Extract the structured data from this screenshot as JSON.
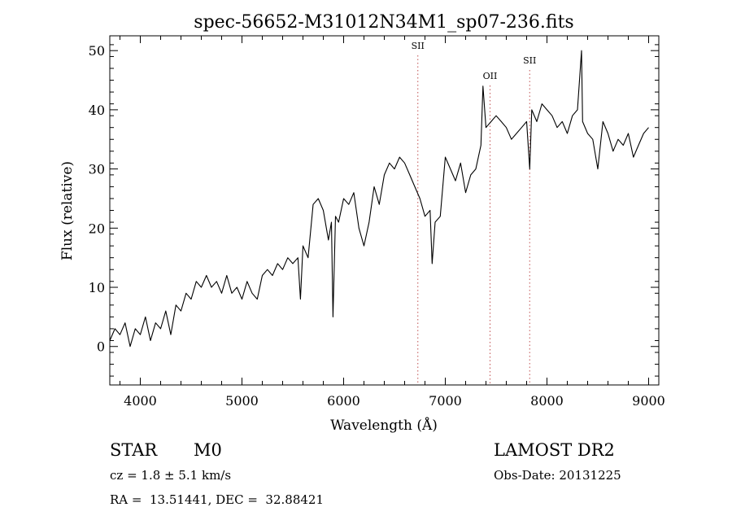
{
  "chart_data": {
    "type": "line",
    "title": "spec-56652-M31012N34M1_sp07-236.fits",
    "xlabel": "Wavelength (Å)",
    "ylabel": "Flux (relative)",
    "xlim": [
      3700,
      9100
    ],
    "ylim": [
      -6.5,
      52.5
    ],
    "x_ticks": [
      4000,
      5000,
      6000,
      7000,
      8000,
      9000
    ],
    "y_ticks": [
      0,
      10,
      20,
      30,
      40,
      50
    ],
    "grid": false,
    "line_color": "#000000",
    "series": [
      {
        "x": [
          3700,
          3750,
          3800,
          3850,
          3900,
          3950,
          4000,
          4050,
          4100,
          4150,
          4200,
          4250,
          4300,
          4350,
          4400,
          4450,
          4500,
          4550,
          4600,
          4650,
          4700,
          4750,
          4800,
          4850,
          4900,
          4950,
          5000,
          5050,
          5100,
          5150,
          5200,
          5250,
          5300,
          5350,
          5400,
          5450,
          5500,
          5550,
          5575,
          5600,
          5650,
          5700,
          5750,
          5800,
          5850,
          5880,
          5895,
          5920,
          5950,
          6000,
          6050,
          6100,
          6150,
          6200,
          6250,
          6300,
          6350,
          6400,
          6450,
          6500,
          6550,
          6600,
          6650,
          6700,
          6750,
          6800,
          6850,
          6870,
          6900,
          6950,
          7000,
          7050,
          7100,
          7150,
          7200,
          7250,
          7300,
          7350,
          7370,
          7400,
          7450,
          7500,
          7550,
          7600,
          7650,
          7700,
          7750,
          7800,
          7830,
          7850,
          7900,
          7950,
          8000,
          8050,
          8100,
          8150,
          8200,
          8250,
          8300,
          8340,
          8350,
          8400,
          8450,
          8500,
          8550,
          8600,
          8650,
          8700,
          8750,
          8800,
          8850,
          8900,
          8950,
          9000
        ],
        "y": [
          1,
          3,
          2,
          4,
          0,
          3,
          2,
          5,
          1,
          4,
          3,
          6,
          2,
          7,
          6,
          9,
          8,
          11,
          10,
          12,
          10,
          11,
          9,
          12,
          9,
          10,
          8,
          11,
          9,
          8,
          12,
          13,
          12,
          14,
          13,
          15,
          14,
          15,
          8,
          17,
          15,
          24,
          25,
          23,
          18,
          21,
          5,
          22,
          21,
          25,
          24,
          26,
          20,
          17,
          21,
          27,
          24,
          29,
          31,
          30,
          32,
          31,
          29,
          27,
          25,
          22,
          23,
          14,
          21,
          22,
          32,
          30,
          28,
          31,
          26,
          29,
          30,
          34,
          44,
          37,
          38,
          39,
          38,
          37,
          35,
          36,
          37,
          38,
          30,
          40,
          38,
          41,
          40,
          39,
          37,
          38,
          36,
          39,
          40,
          50,
          38,
          36,
          35,
          30,
          38,
          36,
          33,
          35,
          34,
          36,
          32,
          34,
          36,
          37
        ]
      }
    ],
    "annotations": [
      {
        "label": "SII",
        "x": 6730
      },
      {
        "label": "OII",
        "x": 7440
      },
      {
        "label": "SII",
        "x": 7830
      }
    ]
  },
  "info": {
    "object_class": "STAR",
    "subclass": "M0",
    "survey": "LAMOST DR2",
    "cz": "cz = 1.8 ± 5.1 km/s",
    "obs_date": "Obs-Date: 20131225",
    "coords": "RA =  13.51441, DEC =  32.88421"
  }
}
